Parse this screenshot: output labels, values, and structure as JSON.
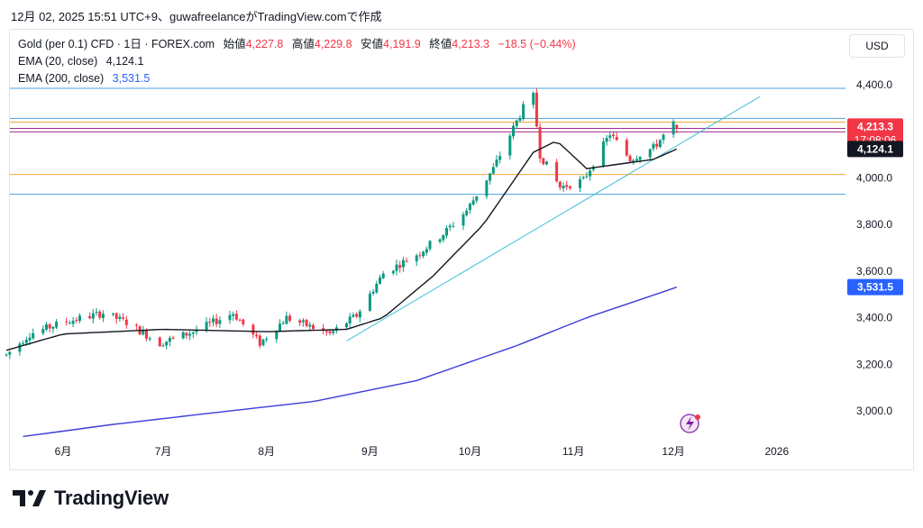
{
  "header": {
    "caption": "12月 02, 2025 15:51 UTC+9、guwafreelanceがTradingView.comで作成"
  },
  "legend": {
    "symbol": "Gold (per 0.1) CFD · 1日 · FOREX.com",
    "open_label": "始値",
    "open": "4,227.8",
    "high_label": "高値",
    "high": "4,229.8",
    "low_label": "安値",
    "low": "4,191.9",
    "close_label": "終値",
    "close": "4,213.3",
    "change": "−18.5 (−0.44%)",
    "ema20_label": "EMA (20, close)",
    "ema20": "4,124.1",
    "ema200_label": "EMA (200, close)",
    "ema200": "3,531.5"
  },
  "currency_button": "USD",
  "price_tags": {
    "last": "4,213.3",
    "countdown": "17:08:06",
    "ema20": "4,124.1",
    "ema200": "3,531.5"
  },
  "brand": {
    "name": "TradingView"
  },
  "colors": {
    "up": "#089981",
    "down": "#f23645",
    "ema20": "#131722",
    "ema200": "#3c3cdc",
    "trendline": "#3fc1d6",
    "hline_blue": "#4aa3df",
    "hline_orange": "#f4a43a",
    "hline_purple": "#a02c8c"
  },
  "chart_data": {
    "type": "candlestick",
    "title": "Gold (per 0.1) CFD · 1日 · FOREX.com",
    "yticks": [
      "3,000.0",
      "3,200.0",
      "3,400.0",
      "3,600.0",
      "3,800.0",
      "4,000.0",
      "4,400.0"
    ],
    "xticks": [
      "6月",
      "7月",
      "8月",
      "9月",
      "10月",
      "11月",
      "12月",
      "2026"
    ],
    "ylim": [
      2880,
      4520
    ],
    "anchors": [
      [
        "2025-05-15",
        3240
      ],
      [
        "2025-05-22",
        3330
      ],
      [
        "2025-06-01",
        3380
      ],
      [
        "2025-06-13",
        3420
      ],
      [
        "2025-06-20",
        3380
      ],
      [
        "2025-06-30",
        3290
      ],
      [
        "2025-07-10",
        3340
      ],
      [
        "2025-07-22",
        3420
      ],
      [
        "2025-07-30",
        3290
      ],
      [
        "2025-08-07",
        3400
      ],
      [
        "2025-08-20",
        3330
      ],
      [
        "2025-08-28",
        3410
      ],
      [
        "2025-09-05",
        3590
      ],
      [
        "2025-09-16",
        3680
      ],
      [
        "2025-09-23",
        3760
      ],
      [
        "2025-09-30",
        3860
      ],
      [
        "2025-10-08",
        4040
      ],
      [
        "2025-10-17",
        4300
      ],
      [
        "2025-10-20",
        4350
      ],
      [
        "2025-10-22",
        4100
      ],
      [
        "2025-10-28",
        3960
      ],
      [
        "2025-11-04",
        3990
      ],
      [
        "2025-11-12",
        4190
      ],
      [
        "2025-11-18",
        4080
      ],
      [
        "2025-11-25",
        4130
      ],
      [
        "2025-12-01",
        4230
      ],
      [
        "2025-12-02",
        4213
      ]
    ],
    "ema20_anchors": [
      [
        "2025-05-15",
        3260
      ],
      [
        "2025-06-01",
        3330
      ],
      [
        "2025-07-01",
        3350
      ],
      [
        "2025-08-01",
        3340
      ],
      [
        "2025-08-25",
        3350
      ],
      [
        "2025-09-05",
        3400
      ],
      [
        "2025-09-20",
        3580
      ],
      [
        "2025-10-05",
        3800
      ],
      [
        "2025-10-20",
        4110
      ],
      [
        "2025-10-27",
        4160
      ],
      [
        "2025-11-05",
        4040
      ],
      [
        "2025-11-15",
        4060
      ],
      [
        "2025-11-25",
        4080
      ],
      [
        "2025-12-02",
        4124
      ]
    ],
    "ema200_anchors": [
      [
        "2025-05-20",
        2890
      ],
      [
        "2025-06-15",
        2940
      ],
      [
        "2025-07-15",
        2990
      ],
      [
        "2025-08-15",
        3040
      ],
      [
        "2025-09-15",
        3130
      ],
      [
        "2025-10-15",
        3280
      ],
      [
        "2025-11-05",
        3400
      ],
      [
        "2025-12-02",
        3531
      ]
    ],
    "trendline": [
      [
        "2025-08-25",
        3300
      ],
      [
        "2025-12-27",
        4350
      ]
    ],
    "hlines": [
      {
        "y": 4385,
        "color": "blue"
      },
      {
        "y": 4256,
        "color": "blue"
      },
      {
        "y": 4240,
        "color": "orange"
      },
      {
        "y": 4213,
        "color": "purple"
      },
      {
        "y": 4198,
        "color": "purple"
      },
      {
        "y": 4015,
        "color": "orange"
      },
      {
        "y": 3930,
        "color": "blue"
      }
    ],
    "current": {
      "open": 4227.8,
      "high": 4229.8,
      "low": 4191.9,
      "close": 4213.3
    }
  }
}
